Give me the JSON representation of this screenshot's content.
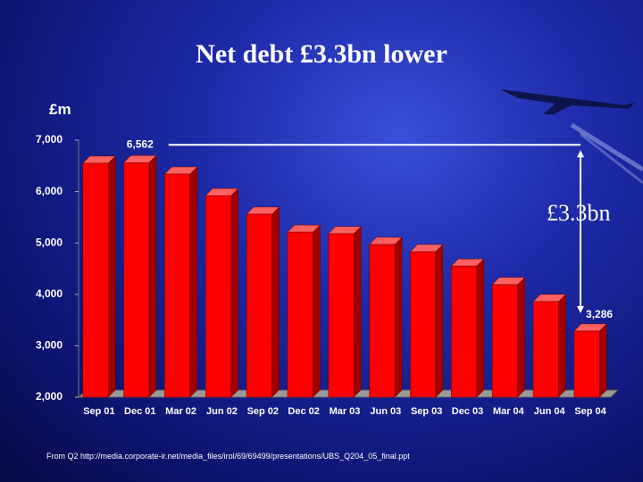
{
  "chart_data": {
    "type": "bar",
    "title": "Net debt £3.3bn lower",
    "y_label": "£m",
    "categories": [
      "Sep 01",
      "Dec 01",
      "Mar 02",
      "Jun 02",
      "Sep 02",
      "Dec 02",
      "Mar 03",
      "Jun 03",
      "Sep 03",
      "Dec 03",
      "Mar 04",
      "Jun 04",
      "Sep 04"
    ],
    "values": [
      6550,
      6562,
      6340,
      5920,
      5560,
      5210,
      5180,
      4970,
      4830,
      4550,
      4190,
      3860,
      3286
    ],
    "value_labels": [
      null,
      "6,562",
      null,
      null,
      null,
      null,
      null,
      null,
      null,
      null,
      null,
      null,
      "3,286"
    ],
    "color": "#ff0000",
    "ylim": [
      2000,
      7000
    ],
    "yticks": [
      {
        "value": 2000,
        "label": "2,000"
      },
      {
        "value": 3000,
        "label": "3,000"
      },
      {
        "value": 4000,
        "label": "4,000"
      },
      {
        "value": 5000,
        "label": "5,000"
      },
      {
        "value": 6000,
        "label": "6,000"
      },
      {
        "value": 7000,
        "label": "7,000"
      }
    ],
    "annotation": "£3.3bn",
    "source": "From Q2 http://media.corporate-ir.net/media_files/irol/69/69499/presentations/UBS_Q204_05_final.ppt"
  }
}
